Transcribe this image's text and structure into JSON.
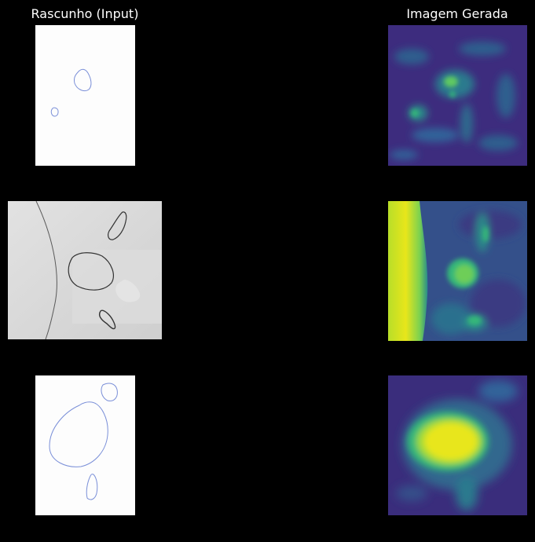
{
  "columns": {
    "left_title": "Rascunho (Input)",
    "right_title": "Imagem Gerada"
  },
  "rows": [
    {
      "input": "white-sketch-blue-contours",
      "output": "viridis-heatmap-small-spots"
    },
    {
      "input": "paper-photo-dark-contours",
      "output": "viridis-heatmap-bright-band-and-blob"
    },
    {
      "input": "white-sketch-blue-contours",
      "output": "viridis-heatmap-large-bright-blob"
    }
  ],
  "colors": {
    "background": "#000000",
    "title_text": "#ffffff",
    "viridis_dark": "#3b2a7a",
    "viridis_mid": "#2a8c8a",
    "viridis_bright": "#e8e61a",
    "sketch_stroke_blue": "#7a8fd8",
    "sketch_stroke_dark": "#333333"
  }
}
